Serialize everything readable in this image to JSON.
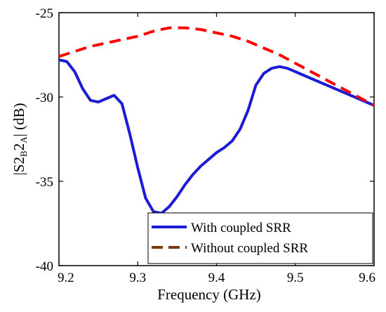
{
  "chart_data": {
    "type": "line",
    "title": "",
    "xlabel": "Frequency (GHz)",
    "ylabel": {
      "main": "|S2",
      "sub1": "B",
      "mid": "2",
      "sub2": "A",
      "end": "| (dB)"
    },
    "xlim": [
      9.2,
      9.6
    ],
    "ylim": [
      -40,
      -25
    ],
    "xticks": [
      9.2,
      9.3,
      9.4,
      9.5,
      9.6
    ],
    "xtick_labels": [
      "9.2",
      "9.3",
      "9.4",
      "9.5",
      "9.6"
    ],
    "yticks": [
      -25,
      -30,
      -35,
      -40
    ],
    "ytick_labels": [
      "-25",
      "-30",
      "-35",
      "-40"
    ],
    "grid": false,
    "legend_position": "bottom-right",
    "series": [
      {
        "name": "With coupled SRR",
        "color": "#1c1cd4",
        "style": "solid",
        "x": [
          9.2,
          9.21,
          9.22,
          9.23,
          9.24,
          9.25,
          9.26,
          9.27,
          9.28,
          9.29,
          9.3,
          9.31,
          9.32,
          9.33,
          9.34,
          9.35,
          9.36,
          9.37,
          9.38,
          9.39,
          9.4,
          9.41,
          9.42,
          9.43,
          9.44,
          9.45,
          9.46,
          9.47,
          9.48,
          9.49,
          9.5,
          9.52,
          9.54,
          9.56,
          9.58,
          9.6
        ],
        "y": [
          -27.8,
          -27.9,
          -28.5,
          -29.5,
          -30.2,
          -30.3,
          -30.1,
          -29.9,
          -30.4,
          -32.2,
          -34.2,
          -36.0,
          -36.8,
          -36.9,
          -36.5,
          -35.9,
          -35.2,
          -34.6,
          -34.1,
          -33.7,
          -33.3,
          -33.0,
          -32.6,
          -31.9,
          -30.8,
          -29.3,
          -28.6,
          -28.3,
          -28.2,
          -28.3,
          -28.5,
          -28.9,
          -29.3,
          -29.7,
          -30.1,
          -30.5
        ]
      },
      {
        "name": "Without coupled SRR",
        "color": "#ff0000",
        "legend_color": "#7a3b10",
        "style": "dashed",
        "x": [
          9.2,
          9.22,
          9.24,
          9.26,
          9.28,
          9.3,
          9.32,
          9.34,
          9.36,
          9.38,
          9.4,
          9.42,
          9.44,
          9.46,
          9.48,
          9.5,
          9.52,
          9.54,
          9.56,
          9.58,
          9.6
        ],
        "y": [
          -27.6,
          -27.3,
          -27.0,
          -26.8,
          -26.6,
          -26.4,
          -26.1,
          -25.9,
          -25.9,
          -26.0,
          -26.2,
          -26.4,
          -26.7,
          -27.1,
          -27.5,
          -28.0,
          -28.5,
          -29.0,
          -29.5,
          -30.0,
          -30.5
        ]
      }
    ]
  }
}
